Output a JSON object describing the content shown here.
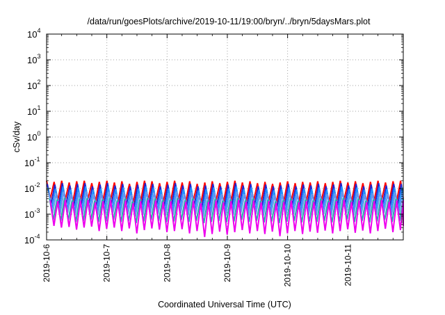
{
  "chart_data": {
    "type": "line",
    "title": "/data/run/goesPlots/archive/2019-10-11/19:00/bryn/../bryn/5daysMars.plot",
    "xlabel": "Coordinated Universal Time (UTC)",
    "ylabel": "cSv/day",
    "yscale": "log",
    "ylim": [
      0.0001,
      10000
    ],
    "xlim": [
      "2019-10-06",
      "2019-10-11T22:00"
    ],
    "grid": true,
    "y_ticks": [
      {
        "base": "10",
        "exp": "-4"
      },
      {
        "base": "10",
        "exp": "-3"
      },
      {
        "base": "10",
        "exp": "-2"
      },
      {
        "base": "10",
        "exp": "-1"
      },
      {
        "base": "10",
        "exp": "0"
      },
      {
        "base": "10",
        "exp": "1"
      },
      {
        "base": "10",
        "exp": "2"
      },
      {
        "base": "10",
        "exp": "3"
      },
      {
        "base": "10",
        "exp": "4"
      }
    ],
    "x_ticks": [
      "2019-10-6",
      "2019-10-7",
      "2019-10-8",
      "2019-10-9",
      "2019-10-10",
      "2019-10-11"
    ],
    "x_tick_days": [
      0,
      1,
      2,
      3,
      4,
      5
    ],
    "x_end_day": 5.92,
    "sawtooth": {
      "period_hours": 3,
      "sample_days": [
        0.0,
        0.0625,
        0.125,
        0.1875,
        0.25,
        0.3125,
        0.375,
        0.4375,
        0.5,
        0.5625,
        0.625,
        0.6875,
        0.75,
        0.8125,
        0.875,
        0.9375,
        1.0,
        1.0625,
        1.125,
        1.1875,
        1.25,
        1.3125,
        1.375,
        1.4375,
        1.5,
        1.5625,
        1.625,
        1.6875,
        1.75,
        1.8125,
        1.875,
        1.9375,
        2.0,
        2.0625,
        2.125,
        2.1875,
        2.25,
        2.3125,
        2.375,
        2.4375,
        2.5,
        2.5625,
        2.625,
        2.6875,
        2.75,
        2.8125,
        2.875,
        2.9375,
        3.0,
        3.0625,
        3.125,
        3.1875,
        3.25,
        3.3125,
        3.375,
        3.4375,
        3.5,
        3.5625,
        3.625,
        3.6875,
        3.75,
        3.8125,
        3.875,
        3.9375,
        4.0,
        4.0625,
        4.125,
        4.1875,
        4.25,
        4.3125,
        4.375,
        4.4375,
        4.5,
        4.5625,
        4.625,
        4.6875,
        4.75,
        4.8125,
        4.875,
        4.9375,
        5.0,
        5.0625,
        5.125,
        5.1875,
        5.25,
        5.3125,
        5.375,
        5.4375,
        5.5,
        5.5625,
        5.625,
        5.6875,
        5.75,
        5.8125,
        5.875,
        5.92
      ]
    },
    "series": [
      {
        "color": "#ff0000",
        "peaks": [
          0.02,
          0.018,
          0.02,
          0.017,
          0.019,
          0.02,
          0.016,
          0.018,
          0.02,
          0.017,
          0.019,
          0.015,
          0.018,
          0.02,
          0.019,
          0.016,
          0.018,
          0.02,
          0.017,
          0.019,
          0.015,
          0.017,
          0.019,
          0.016,
          0.018,
          0.02,
          0.017,
          0.019,
          0.016,
          0.018,
          0.015,
          0.017,
          0.019,
          0.016,
          0.018,
          0.017,
          0.019,
          0.016,
          0.018,
          0.02,
          0.017,
          0.019,
          0.016,
          0.018,
          0.02,
          0.017,
          0.019
        ],
        "troughs": [
          0.004,
          0.0035,
          0.0038,
          0.003,
          0.0036,
          0.004,
          0.0032,
          0.0034,
          0.0037,
          0.003,
          0.0035,
          0.0028,
          0.0033,
          0.0036,
          0.0034,
          0.003,
          0.0033,
          0.0037,
          0.0031,
          0.0035,
          0.0027,
          0.0031,
          0.0034,
          0.003,
          0.0033,
          0.0036,
          0.0031,
          0.0034,
          0.003,
          0.0033,
          0.0028,
          0.0031,
          0.0034,
          0.003,
          0.0033,
          0.0031,
          0.0034,
          0.003,
          0.0033,
          0.0036,
          0.0031,
          0.0034,
          0.003,
          0.0033,
          0.0036,
          0.0031,
          0.0034
        ]
      },
      {
        "color": "#2222cc",
        "peaks": [
          0.015,
          0.014,
          0.016,
          0.013,
          0.015,
          0.016,
          0.012,
          0.014,
          0.016,
          0.013,
          0.015,
          0.012,
          0.014,
          0.016,
          0.015,
          0.012,
          0.014,
          0.016,
          0.013,
          0.015,
          0.012,
          0.013,
          0.015,
          0.012,
          0.014,
          0.016,
          0.013,
          0.015,
          0.012,
          0.014,
          0.012,
          0.013,
          0.015,
          0.012,
          0.014,
          0.013,
          0.015,
          0.012,
          0.014,
          0.016,
          0.013,
          0.015,
          0.012,
          0.014,
          0.016,
          0.013,
          0.015
        ],
        "troughs": [
          0.0025,
          0.0022,
          0.0024,
          0.002,
          0.0023,
          0.0025,
          0.002,
          0.0022,
          0.0024,
          0.002,
          0.0023,
          0.0018,
          0.0021,
          0.0023,
          0.0022,
          0.0019,
          0.0021,
          0.0024,
          0.002,
          0.0022,
          0.0017,
          0.002,
          0.0022,
          0.0019,
          0.0021,
          0.0023,
          0.002,
          0.0022,
          0.0019,
          0.0021,
          0.0018,
          0.002,
          0.0022,
          0.0019,
          0.0021,
          0.002,
          0.0022,
          0.0019,
          0.0021,
          0.0023,
          0.002,
          0.0022,
          0.0019,
          0.0021,
          0.0023,
          0.002,
          0.0022
        ]
      },
      {
        "color": "#1e90ff",
        "peaks": [
          0.011,
          0.01,
          0.012,
          0.009,
          0.011,
          0.012,
          0.009,
          0.01,
          0.012,
          0.0095,
          0.011,
          0.0085,
          0.01,
          0.012,
          0.011,
          0.009,
          0.01,
          0.012,
          0.0095,
          0.011,
          0.0085,
          0.0095,
          0.011,
          0.009,
          0.01,
          0.012,
          0.0095,
          0.011,
          0.009,
          0.01,
          0.0085,
          0.0095,
          0.011,
          0.009,
          0.01,
          0.0095,
          0.011,
          0.009,
          0.01,
          0.012,
          0.0095,
          0.011,
          0.009,
          0.01,
          0.012,
          0.0095,
          0.011
        ],
        "troughs": [
          0.0016,
          0.0014,
          0.0015,
          0.0012,
          0.0014,
          0.0016,
          0.0012,
          0.0013,
          0.0015,
          0.0012,
          0.0014,
          0.0011,
          0.0013,
          0.0015,
          0.0014,
          0.0012,
          0.0013,
          0.0015,
          0.0012,
          0.0014,
          0.0011,
          0.0012,
          0.0014,
          0.0012,
          0.0013,
          0.0015,
          0.0012,
          0.0014,
          0.0012,
          0.0013,
          0.0011,
          0.0012,
          0.0014,
          0.0012,
          0.0013,
          0.0012,
          0.0014,
          0.0012,
          0.0013,
          0.0015,
          0.0012,
          0.0014,
          0.0012,
          0.0013,
          0.0015,
          0.0012,
          0.0014
        ]
      },
      {
        "color": "#6495ed",
        "peaks": [
          0.007,
          0.0065,
          0.0075,
          0.006,
          0.007,
          0.0075,
          0.006,
          0.0065,
          0.0075,
          0.006,
          0.007,
          0.0055,
          0.0065,
          0.0075,
          0.007,
          0.006,
          0.0065,
          0.0075,
          0.006,
          0.007,
          0.0055,
          0.006,
          0.007,
          0.006,
          0.0065,
          0.0075,
          0.006,
          0.007,
          0.006,
          0.0065,
          0.0055,
          0.006,
          0.007,
          0.006,
          0.0065,
          0.006,
          0.007,
          0.006,
          0.0065,
          0.0075,
          0.006,
          0.007,
          0.006,
          0.0065,
          0.0075,
          0.006,
          0.007
        ],
        "troughs": [
          0.0011,
          0.001,
          0.0011,
          0.0009,
          0.001,
          0.0011,
          0.0009,
          0.00095,
          0.0011,
          0.0009,
          0.001,
          0.0008,
          0.00095,
          0.0011,
          0.001,
          0.00088,
          0.00095,
          0.0011,
          0.0009,
          0.001,
          0.0008,
          0.0009,
          0.001,
          0.00088,
          0.00095,
          0.0011,
          0.0009,
          0.001,
          0.00088,
          0.00095,
          0.0008,
          0.0009,
          0.001,
          0.00088,
          0.00095,
          0.0009,
          0.001,
          0.00088,
          0.00095,
          0.0011,
          0.0009,
          0.001,
          0.00088,
          0.00095,
          0.0011,
          0.0009,
          0.001
        ]
      },
      {
        "color": "#20b2aa",
        "peaks": [
          0.004,
          0.0037,
          0.0042,
          0.0034,
          0.004,
          0.0042,
          0.0033,
          0.0037,
          0.0042,
          0.0034,
          0.004,
          0.0031,
          0.0037,
          0.0042,
          0.004,
          0.0034,
          0.0037,
          0.0042,
          0.0034,
          0.004,
          0.0031,
          0.0034,
          0.004,
          0.0033,
          0.0037,
          0.0042,
          0.0034,
          0.004,
          0.0033,
          0.0037,
          0.0031,
          0.0034,
          0.004,
          0.0033,
          0.0037,
          0.0034,
          0.004,
          0.0033,
          0.0037,
          0.0042,
          0.0034,
          0.004,
          0.0033,
          0.0037,
          0.0042,
          0.0034,
          0.004
        ],
        "troughs": [
          0.0006,
          0.00055,
          0.0006,
          0.0005,
          0.00055,
          0.0006,
          0.0005,
          0.00052,
          0.0006,
          0.0005,
          0.00055,
          0.00045,
          0.00052,
          0.0006,
          0.00055,
          0.00048,
          0.00052,
          0.0006,
          0.0005,
          0.00055,
          0.00045,
          0.0005,
          0.00055,
          0.00048,
          0.00052,
          0.0006,
          0.0005,
          0.00055,
          0.00048,
          0.00052,
          0.00045,
          0.0005,
          0.00055,
          0.00048,
          0.00052,
          0.0005,
          0.00055,
          0.00048,
          0.00052,
          0.0006,
          0.0005,
          0.00055,
          0.00048,
          0.00052,
          0.0006,
          0.0005,
          0.00055
        ]
      },
      {
        "color": "#ee00ee",
        "peaks": [
          0.0035,
          0.0032,
          0.0036,
          0.003,
          0.0034,
          0.0036,
          0.0029,
          0.0032,
          0.0036,
          0.003,
          0.0034,
          0.0027,
          0.0032,
          0.0036,
          0.0034,
          0.003,
          0.0032,
          0.0036,
          0.003,
          0.0034,
          0.0027,
          0.003,
          0.0034,
          0.0029,
          0.0032,
          0.0036,
          0.003,
          0.0034,
          0.0029,
          0.0032,
          0.0027,
          0.003,
          0.0034,
          0.0029,
          0.0032,
          0.003,
          0.0034,
          0.0029,
          0.0032,
          0.0036,
          0.003,
          0.0034,
          0.0029,
          0.0032,
          0.0036,
          0.003,
          0.0034
        ],
        "troughs": [
          0.00035,
          0.0003,
          0.00032,
          0.00025,
          0.0003,
          0.00033,
          0.00022,
          0.00027,
          0.0003,
          0.00022,
          0.00028,
          0.00018,
          0.00024,
          0.00028,
          0.00025,
          0.0002,
          0.00022,
          0.00026,
          0.00018,
          0.00022,
          0.00013,
          0.00017,
          0.00021,
          0.00016,
          0.0002,
          0.00024,
          0.00018,
          0.00022,
          0.00017,
          0.00021,
          0.00014,
          0.00018,
          0.00022,
          0.00017,
          0.00021,
          0.00019,
          0.00023,
          0.00018,
          0.00022,
          0.00026,
          0.00019,
          0.00023,
          0.00018,
          0.00022,
          0.00027,
          0.0002,
          0.00024
        ]
      }
    ]
  }
}
